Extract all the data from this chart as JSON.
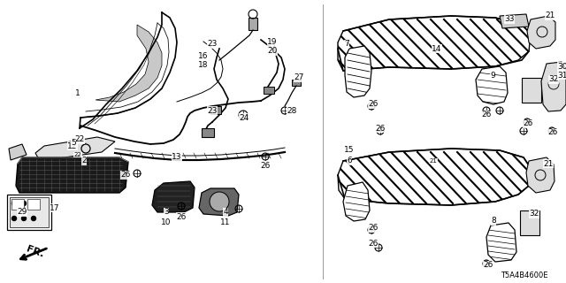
{
  "bg_color": "#ffffff",
  "diagram_code": "T5A4B4600E",
  "fig_width": 6.4,
  "fig_height": 3.2,
  "dpi": 100
}
